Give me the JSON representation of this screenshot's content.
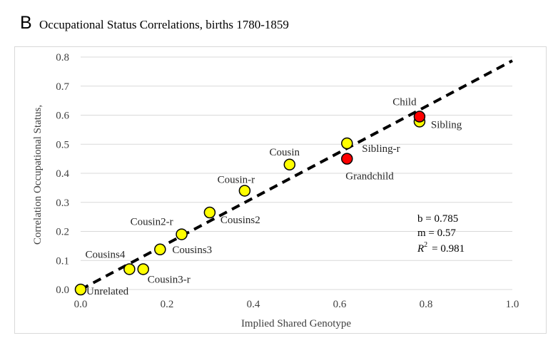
{
  "chart_data": {
    "type": "scatter",
    "panel_label": "B",
    "title": "Occupational Status Correlations, births 1780-1859",
    "xlabel": "Implied Shared Genotype",
    "ylabel": "Correlation Occupational Status,",
    "xlim": [
      0.0,
      1.0
    ],
    "ylim": [
      0.0,
      0.8
    ],
    "x_ticks": [
      "0.0",
      "0.2",
      "0.4",
      "0.6",
      "0.8",
      "1.0"
    ],
    "y_ticks": [
      "0.0",
      "0.1",
      "0.2",
      "0.3",
      "0.4",
      "0.5",
      "0.6",
      "0.7",
      "0.8"
    ],
    "x_tick_values": [
      0.0,
      0.2,
      0.4,
      0.6,
      0.8,
      1.0
    ],
    "y_tick_values": [
      0.0,
      0.1,
      0.2,
      0.3,
      0.4,
      0.5,
      0.6,
      0.7,
      0.8
    ],
    "grid": "horizontal",
    "points": [
      {
        "label": "Unrelated",
        "x": 0.0,
        "y": 0.0,
        "color": "#ffff00"
      },
      {
        "label": "Cousins4",
        "x": 0.113,
        "y": 0.07,
        "color": "#ffff00"
      },
      {
        "label": "Cousin3-r",
        "x": 0.145,
        "y": 0.07,
        "color": "#ffff00"
      },
      {
        "label": "Cousins3",
        "x": 0.184,
        "y": 0.138,
        "color": "#ffff00"
      },
      {
        "label": "Cousin2-r",
        "x": 0.234,
        "y": 0.19,
        "color": "#ffff00"
      },
      {
        "label": "Cousins2",
        "x": 0.299,
        "y": 0.265,
        "color": "#ffff00"
      },
      {
        "label": "Cousin-r",
        "x": 0.38,
        "y": 0.34,
        "color": "#ffff00"
      },
      {
        "label": "Cousin",
        "x": 0.484,
        "y": 0.43,
        "color": "#ffff00"
      },
      {
        "label": "Sibling-r",
        "x": 0.617,
        "y": 0.503,
        "color": "#ffff00"
      },
      {
        "label": "Grandchild",
        "x": 0.617,
        "y": 0.45,
        "color": "#ff0000"
      },
      {
        "label": "Sibling",
        "x": 0.785,
        "y": 0.578,
        "color": "#ffff00"
      },
      {
        "label": "Child",
        "x": 0.785,
        "y": 0.595,
        "color": "#ff0000"
      }
    ],
    "trendline": {
      "style": "dashed",
      "color": "#000000",
      "x": [
        0.0,
        1.0
      ],
      "y": [
        0.0,
        0.7875
      ]
    },
    "annotations": {
      "b": "b = 0.785",
      "m": "m = 0.57",
      "r2_symbol": "R",
      "r2_exp": "2",
      "r2_value": "= 0.981"
    }
  }
}
